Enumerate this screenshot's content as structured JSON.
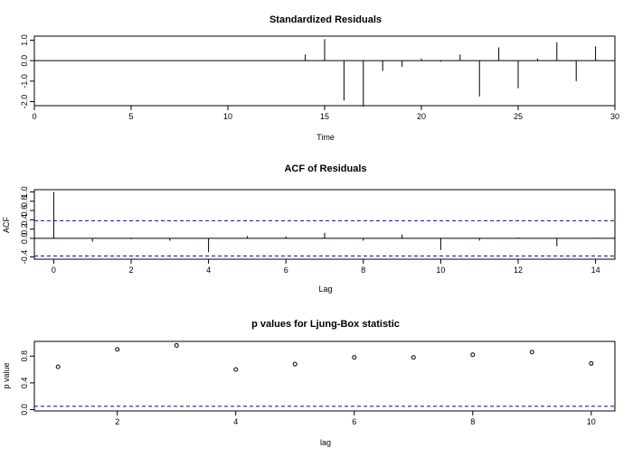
{
  "chart_data": [
    {
      "type": "bar",
      "title": "Standardized Residuals",
      "xlabel": "Time",
      "ylabel": "",
      "xlim": [
        0,
        30
      ],
      "ylim": [
        -2.2,
        1.2
      ],
      "x_ticks": [
        0,
        5,
        10,
        15,
        20,
        25,
        30
      ],
      "y_ticks": [
        -2.0,
        -1.0,
        0.0,
        1.0
      ],
      "y_tick_labels": [
        "-2.0",
        "-1.0",
        "0.0",
        "1.0"
      ],
      "zero_line": 0,
      "x": [
        14,
        15,
        16,
        17,
        18,
        19,
        20,
        21,
        22,
        23,
        24,
        25,
        26,
        27,
        28,
        29
      ],
      "values": [
        0.3,
        1.05,
        -1.95,
        -2.25,
        -0.5,
        -0.3,
        0.1,
        -0.05,
        0.3,
        -1.75,
        0.65,
        -1.35,
        0.1,
        0.9,
        -1.0,
        0.7
      ]
    },
    {
      "type": "bar",
      "title": "ACF of Residuals",
      "xlabel": "Lag",
      "ylabel": "ACF",
      "xlim": [
        -0.5,
        14.5
      ],
      "ylim": [
        -0.45,
        1.05
      ],
      "x_ticks": [
        0,
        2,
        4,
        6,
        8,
        10,
        12,
        14
      ],
      "y_ticks": [
        -0.4,
        0.0,
        0.2,
        0.4,
        0.6,
        0.8,
        1.0
      ],
      "y_tick_labels": [
        "-0.4",
        "0.0",
        "0.2",
        "0.4",
        "0.6",
        "0.8",
        "1.0"
      ],
      "zero_line": 0,
      "ci": [
        0.38,
        -0.38
      ],
      "x": [
        0,
        1,
        2,
        3,
        4,
        5,
        6,
        7,
        8,
        9,
        10,
        11,
        12,
        13,
        14
      ],
      "values": [
        1.0,
        -0.07,
        -0.02,
        -0.05,
        -0.3,
        0.05,
        0.04,
        0.12,
        -0.05,
        0.08,
        -0.25,
        -0.05,
        0.02,
        -0.17,
        0.01
      ]
    },
    {
      "type": "scatter",
      "title": "p values for Ljung-Box statistic",
      "xlabel": "lag",
      "ylabel": "p value",
      "xlim": [
        0.6,
        10.4
      ],
      "ylim": [
        -0.02,
        1.02
      ],
      "x_ticks": [
        2,
        4,
        6,
        8,
        10
      ],
      "y_ticks": [
        0.0,
        0.4,
        0.8
      ],
      "y_tick_labels": [
        "0.0",
        "0.4",
        "0.8"
      ],
      "hline": 0.05,
      "x": [
        1,
        2,
        3,
        4,
        5,
        6,
        7,
        8,
        9,
        10
      ],
      "values": [
        0.64,
        0.9,
        0.96,
        0.6,
        0.68,
        0.78,
        0.78,
        0.82,
        0.86,
        0.69
      ]
    }
  ],
  "colors": {
    "ci_line": "#0000cc",
    "ink": "#000000"
  }
}
